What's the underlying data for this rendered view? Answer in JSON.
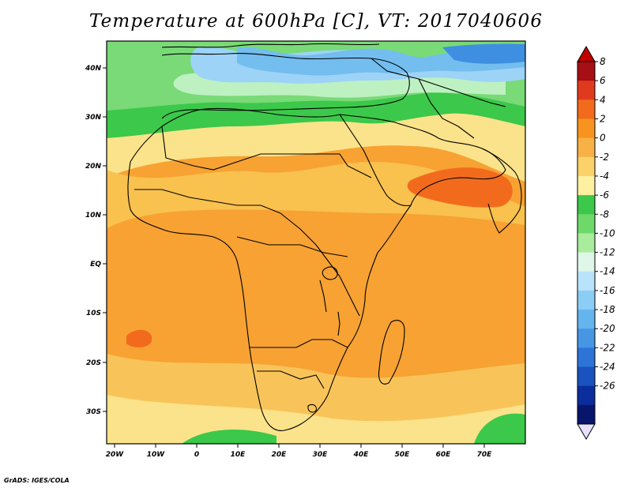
{
  "title": "Temperature at 600hPa [C], VT: 2017040606",
  "credit": "GrADS: IGES/COLA",
  "map": {
    "variable": "Temperature",
    "level": "600hPa",
    "units": "C",
    "valid_time": "2017040606",
    "lon_range": [
      -25,
      80
    ],
    "lat_range": [
      -37,
      45
    ],
    "lat_ticks": [
      "40N",
      "30N",
      "20N",
      "10N",
      "EQ",
      "10S",
      "20S",
      "30S"
    ],
    "lon_ticks": [
      "20W",
      "10W",
      "0",
      "10E",
      "20E",
      "30E",
      "40E",
      "50E",
      "60E",
      "70E"
    ]
  },
  "colorbar": {
    "labels": [
      "8",
      "6",
      "4",
      "2",
      "0",
      "-2",
      "-4",
      "-6",
      "-8",
      "-10",
      "-12",
      "-14",
      "-16",
      "-18",
      "-20",
      "-22",
      "-24",
      "-26"
    ],
    "colors": [
      "#a50f15",
      "#e03a1e",
      "#f26b1d",
      "#f7931e",
      "#f8b144",
      "#fbd169",
      "#fdf0a0",
      "#3cc84a",
      "#6fd86b",
      "#a9ec9b",
      "#def7e8",
      "#b8e3fb",
      "#8ccdf6",
      "#64b4ee",
      "#4796e4",
      "#2e73d6",
      "#1a52bf",
      "#0c2d9c",
      "#07166b"
    ],
    "over_color": "#c00000",
    "under_color": "#e8e0ff"
  }
}
